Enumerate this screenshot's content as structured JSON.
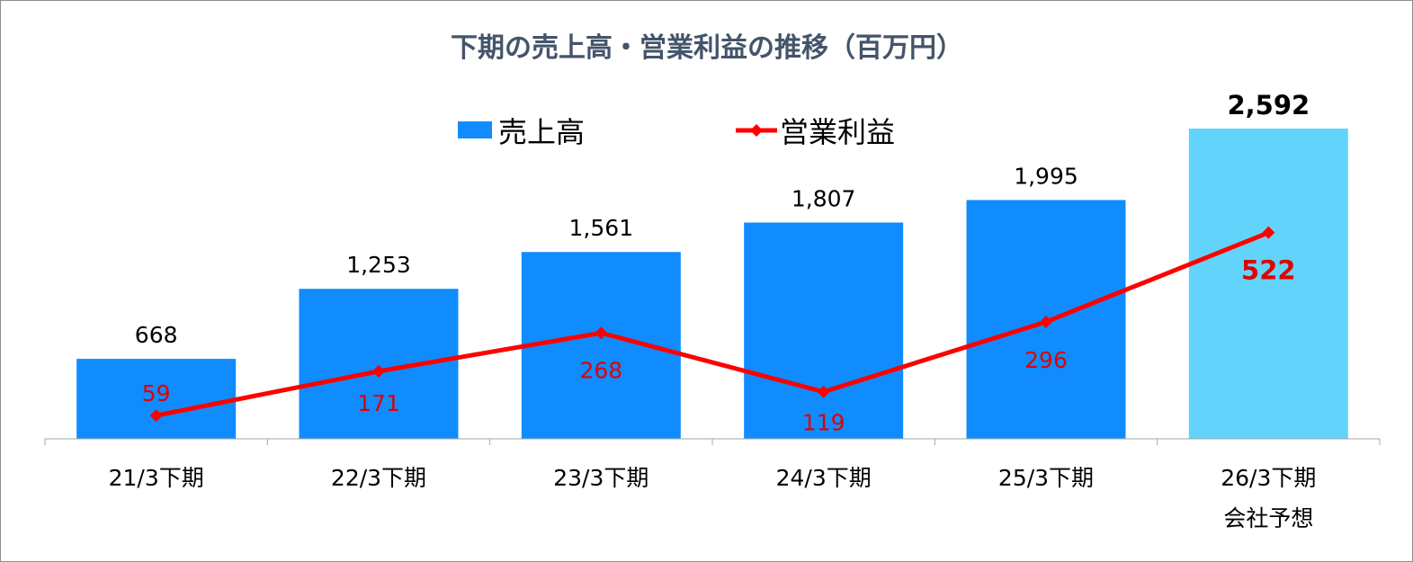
{
  "chart_data": {
    "type": "bar",
    "title": "下期の売上高・営業利益の推移（百万円）",
    "categories": [
      "21/3下期",
      "22/3下期",
      "23/3下期",
      "24/3下期",
      "25/3下期",
      "26/3下期"
    ],
    "category_sublabels": [
      "",
      "",
      "",
      "",
      "",
      "会社予想"
    ],
    "series": [
      {
        "name": "売上高",
        "type": "bar",
        "values": [
          668,
          1253,
          1561,
          1807,
          1995,
          2592
        ],
        "labels": [
          "668",
          "1,253",
          "1,561",
          "1,807",
          "1,995",
          "2,592"
        ],
        "color": "#108cff",
        "highlight_color": "#62d4fb",
        "highlight_index": 5
      },
      {
        "name": "営業利益",
        "type": "line",
        "values": [
          59,
          171,
          268,
          119,
          296,
          522
        ],
        "labels": [
          "59",
          "171",
          "268",
          "119",
          "296",
          "522"
        ],
        "color": "#ff0000",
        "marker": "diamond"
      }
    ],
    "legend_position": "top-center",
    "grid": false,
    "colors": {
      "title": "#44546a",
      "bar_label": "#000000",
      "line_label": "#e00000",
      "axis": "#a6a6a6"
    }
  }
}
